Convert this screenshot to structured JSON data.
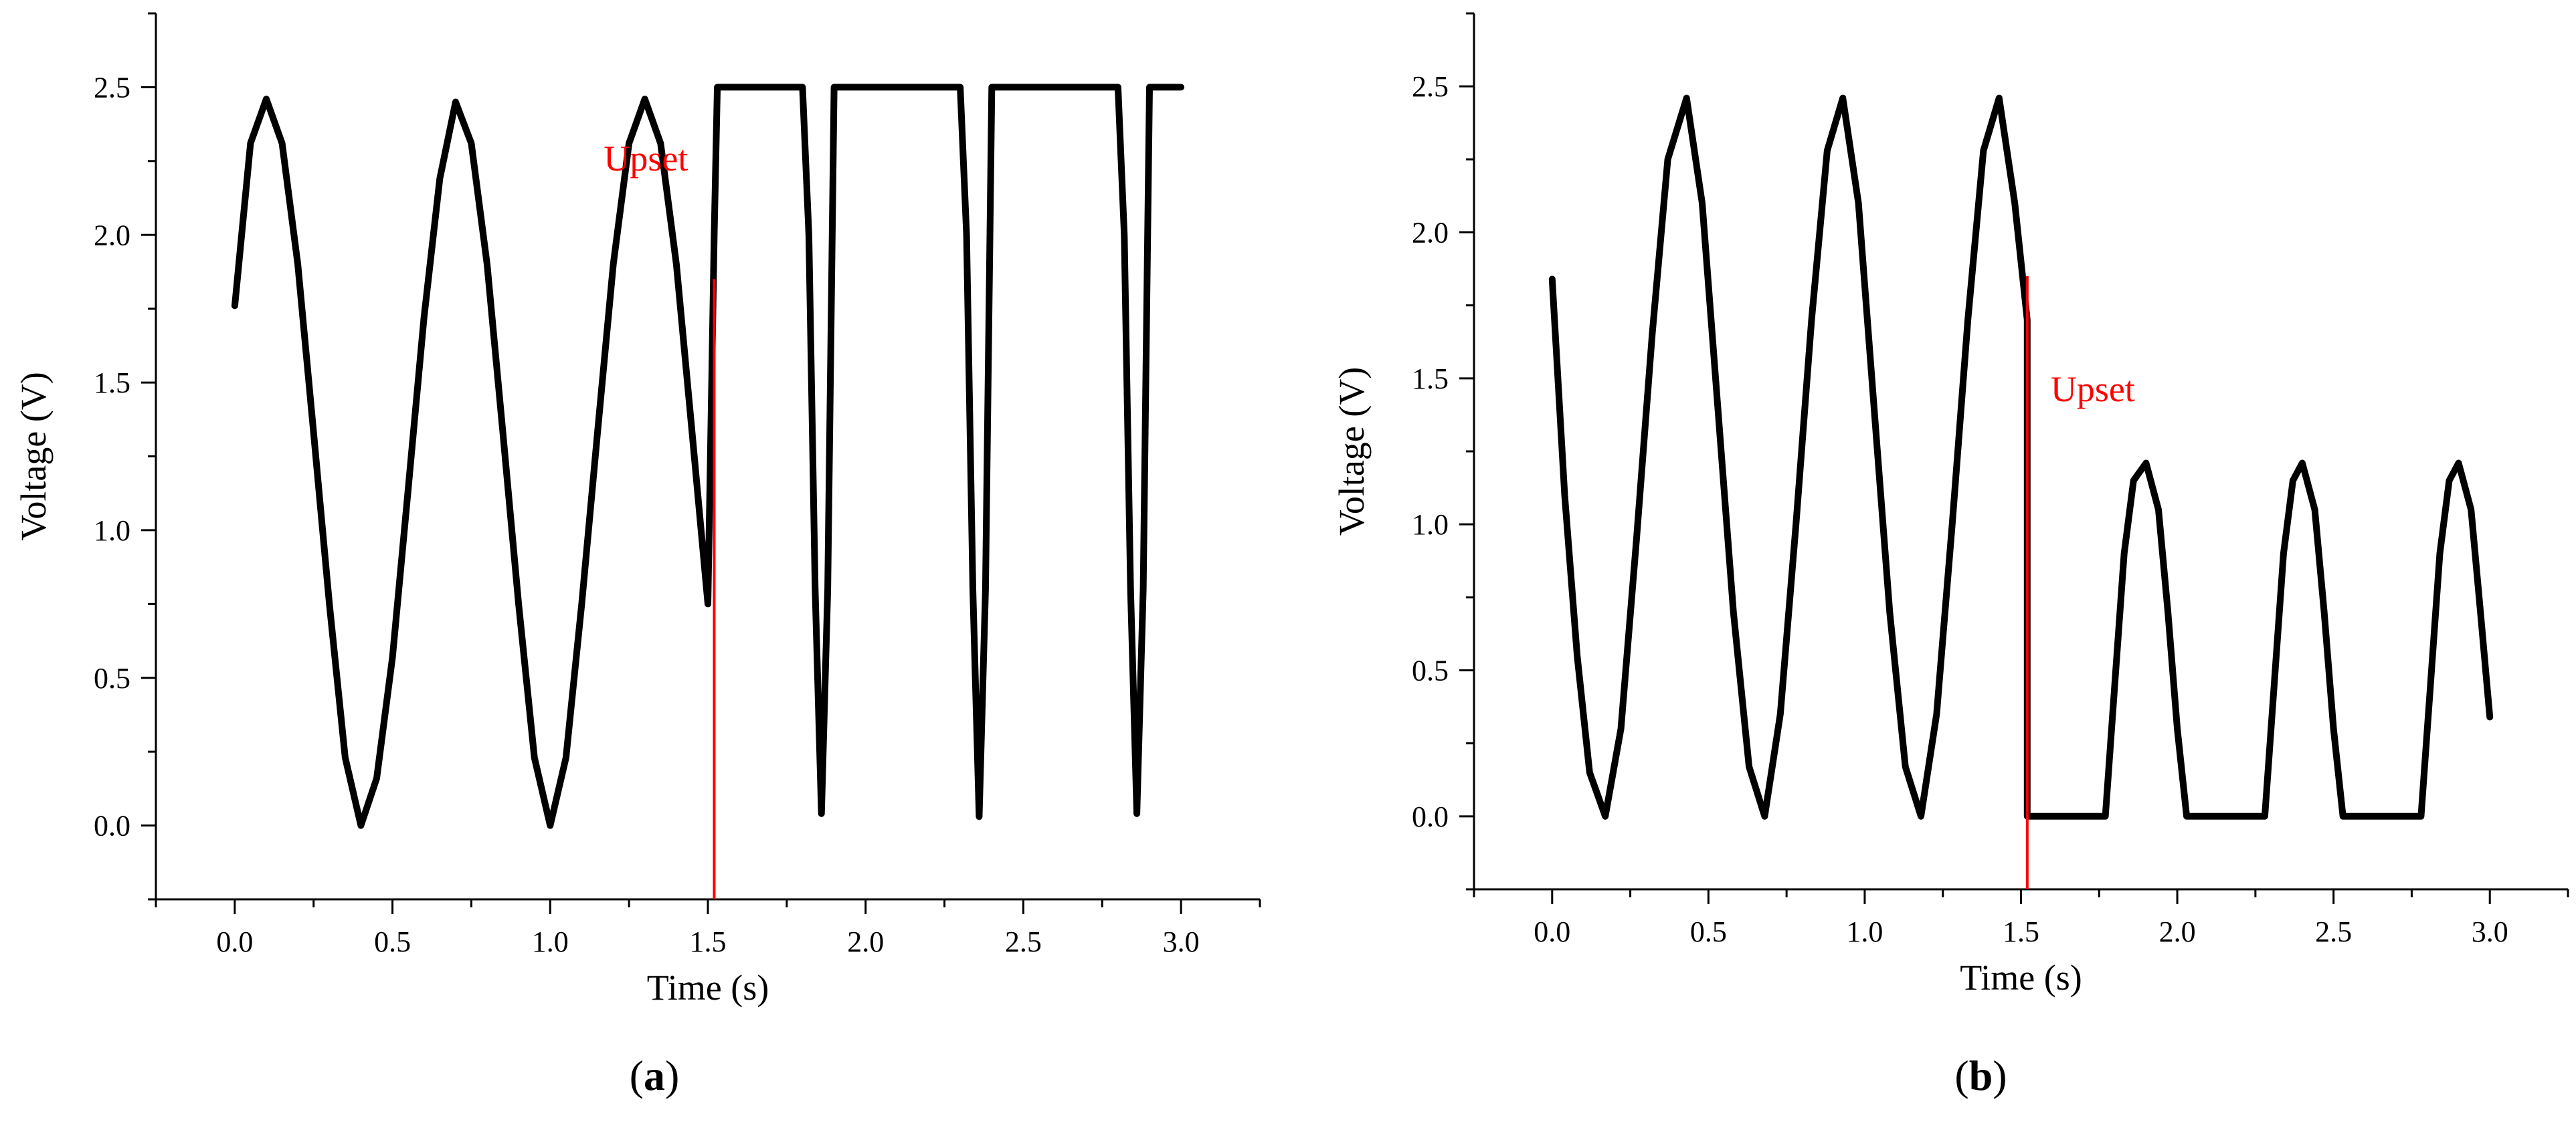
{
  "chart_data": [
    {
      "panel_label": "a",
      "type": "line",
      "xlabel": "Time (s)",
      "ylabel": "Voltage (V)",
      "xlim": [
        -0.25,
        3.25
      ],
      "ylim": [
        -0.25,
        2.75
      ],
      "x_ticks": [
        0.0,
        0.5,
        1.0,
        1.5,
        2.0,
        2.5,
        3.0
      ],
      "x_tick_labels": [
        "0.0",
        "0.5",
        "1.0",
        "1.5",
        "2.0",
        "2.5",
        "3.0"
      ],
      "y_ticks": [
        0.0,
        0.5,
        1.0,
        1.5,
        2.0,
        2.5
      ],
      "y_tick_labels": [
        "0.0",
        "0.5",
        "1.0",
        "1.5",
        "2.0",
        "2.5"
      ],
      "grid": false,
      "series_color": "#000000",
      "annotation": {
        "text": "Upset",
        "x": 1.52,
        "color": "#ff0000"
      },
      "series": [
        {
          "x": [
            0.0,
            0.05,
            0.1,
            0.15,
            0.2,
            0.25,
            0.3,
            0.35,
            0.4,
            0.45,
            0.5,
            0.55,
            0.6,
            0.65,
            0.7,
            0.75,
            0.8,
            0.85,
            0.9,
            0.95,
            1.0,
            1.05,
            1.1,
            1.15,
            1.2,
            1.25,
            1.3,
            1.35,
            1.4,
            1.45,
            1.5,
            1.52,
            1.53,
            1.8,
            1.82,
            1.84,
            1.86,
            1.88,
            1.9,
            2.3,
            2.32,
            2.34,
            2.36,
            2.38,
            2.4,
            2.8,
            2.82,
            2.84,
            2.86,
            2.88,
            2.9,
            3.0
          ],
          "y": [
            1.76,
            2.31,
            2.46,
            2.31,
            1.9,
            1.33,
            0.75,
            0.23,
            0.0,
            0.16,
            0.57,
            1.14,
            1.72,
            2.19,
            2.45,
            2.31,
            1.9,
            1.33,
            0.75,
            0.23,
            0.0,
            0.23,
            0.75,
            1.33,
            1.9,
            2.31,
            2.46,
            2.31,
            1.9,
            1.33,
            0.75,
            2.0,
            2.5,
            2.5,
            2.0,
            0.8,
            0.04,
            0.8,
            2.5,
            2.5,
            2.0,
            0.8,
            0.03,
            0.8,
            2.5,
            2.5,
            2.0,
            0.8,
            0.04,
            0.8,
            2.5,
            2.5
          ]
        }
      ]
    },
    {
      "panel_label": "b",
      "type": "line",
      "xlabel": "Time (s)",
      "ylabel": "Voltage (V)",
      "xlim": [
        -0.25,
        3.25
      ],
      "ylim": [
        -0.25,
        2.75
      ],
      "x_ticks": [
        0.0,
        0.5,
        1.0,
        1.5,
        2.0,
        2.5,
        3.0
      ],
      "x_tick_labels": [
        "0.0",
        "0.5",
        "1.0",
        "1.5",
        "2.0",
        "2.5",
        "3.0"
      ],
      "y_ticks": [
        0.0,
        0.5,
        1.0,
        1.5,
        2.0,
        2.5
      ],
      "y_tick_labels": [
        "0.0",
        "0.5",
        "1.0",
        "1.5",
        "2.0",
        "2.5"
      ],
      "grid": false,
      "series_color": "#000000",
      "annotation": {
        "text": "Upset",
        "x": 1.52,
        "color": "#ff0000"
      },
      "series": [
        {
          "x": [
            0.0,
            0.04,
            0.08,
            0.12,
            0.17,
            0.22,
            0.27,
            0.32,
            0.37,
            0.43,
            0.48,
            0.53,
            0.58,
            0.63,
            0.68,
            0.73,
            0.78,
            0.83,
            0.88,
            0.93,
            0.98,
            1.03,
            1.08,
            1.13,
            1.18,
            1.23,
            1.28,
            1.33,
            1.38,
            1.43,
            1.48,
            1.52,
            1.52,
            1.53,
            1.77,
            1.8,
            1.83,
            1.86,
            1.9,
            1.94,
            1.97,
            2.0,
            2.03,
            2.28,
            2.31,
            2.34,
            2.37,
            2.4,
            2.44,
            2.47,
            2.5,
            2.53,
            2.78,
            2.81,
            2.84,
            2.87,
            2.9,
            2.94,
            2.97,
            3.0
          ],
          "y": [
            1.84,
            1.1,
            0.55,
            0.15,
            0.0,
            0.3,
            0.95,
            1.65,
            2.25,
            2.46,
            2.1,
            1.4,
            0.7,
            0.17,
            0.0,
            0.35,
            1.0,
            1.7,
            2.28,
            2.46,
            2.1,
            1.4,
            0.7,
            0.17,
            0.0,
            0.35,
            1.0,
            1.7,
            2.28,
            2.46,
            2.1,
            1.7,
            0.0,
            0.0,
            0.0,
            0.45,
            0.9,
            1.15,
            1.21,
            1.05,
            0.7,
            0.3,
            0.0,
            0.0,
            0.45,
            0.9,
            1.15,
            1.21,
            1.05,
            0.7,
            0.3,
            0.0,
            0.0,
            0.45,
            0.9,
            1.15,
            1.21,
            1.05,
            0.7,
            0.34
          ]
        }
      ]
    }
  ]
}
